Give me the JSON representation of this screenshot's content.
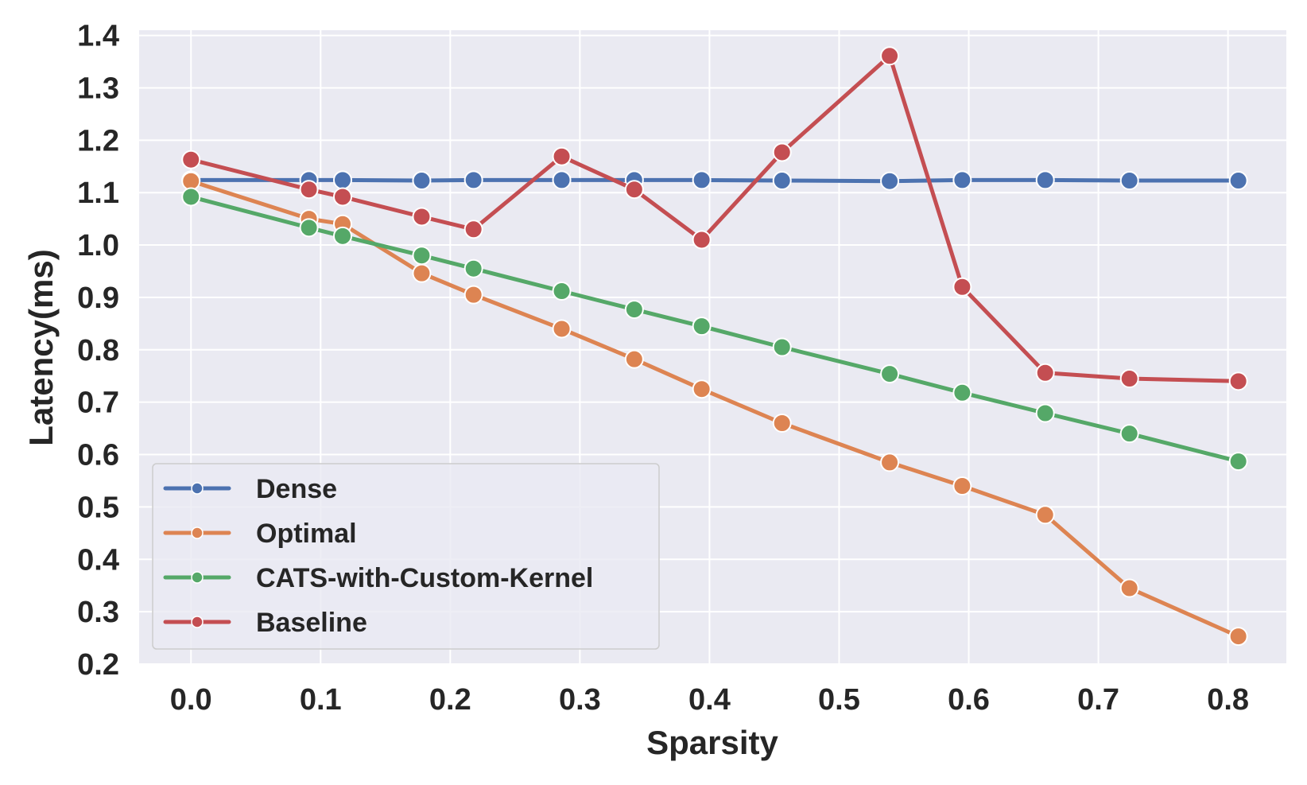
{
  "chart_data": {
    "type": "line",
    "title": "",
    "xlabel": "Sparsity",
    "ylabel": "Latency(ms)",
    "xlim": [
      -0.04,
      0.845
    ],
    "ylim": [
      0.2,
      1.41
    ],
    "xticks": [
      0.0,
      0.1,
      0.2,
      0.3,
      0.4,
      0.5,
      0.6,
      0.7,
      0.8
    ],
    "yticks": [
      0.2,
      0.3,
      0.4,
      0.5,
      0.6,
      0.7,
      0.8,
      0.9,
      1.0,
      1.1,
      1.2,
      1.3,
      1.4
    ],
    "x": [
      0.0,
      0.091,
      0.117,
      0.178,
      0.218,
      0.286,
      0.342,
      0.394,
      0.456,
      0.539,
      0.595,
      0.659,
      0.724,
      0.808
    ],
    "grid": true,
    "legend_position": "lower-left",
    "series": [
      {
        "name": "Dense",
        "color": "#4c72b0",
        "values": [
          1.124,
          1.124,
          1.124,
          1.123,
          1.124,
          1.124,
          1.124,
          1.124,
          1.123,
          1.122,
          1.124,
          1.124,
          1.123,
          1.123
        ]
      },
      {
        "name": "Optimal",
        "color": "#dd8452",
        "values": [
          1.122,
          1.05,
          1.04,
          0.946,
          0.905,
          0.84,
          0.782,
          0.725,
          0.66,
          0.585,
          0.54,
          0.485,
          0.345,
          0.253
        ]
      },
      {
        "name": "CATS-with-Custom-Kernel",
        "color": "#55a868",
        "values": [
          1.092,
          1.033,
          1.017,
          0.98,
          0.955,
          0.912,
          0.877,
          0.845,
          0.805,
          0.754,
          0.718,
          0.679,
          0.64,
          0.587
        ]
      },
      {
        "name": "Baseline",
        "color": "#c44e52",
        "values": [
          1.163,
          1.106,
          1.092,
          1.054,
          1.03,
          1.169,
          1.106,
          1.01,
          1.177,
          1.361,
          0.92,
          0.756,
          0.745,
          0.74
        ]
      }
    ]
  }
}
